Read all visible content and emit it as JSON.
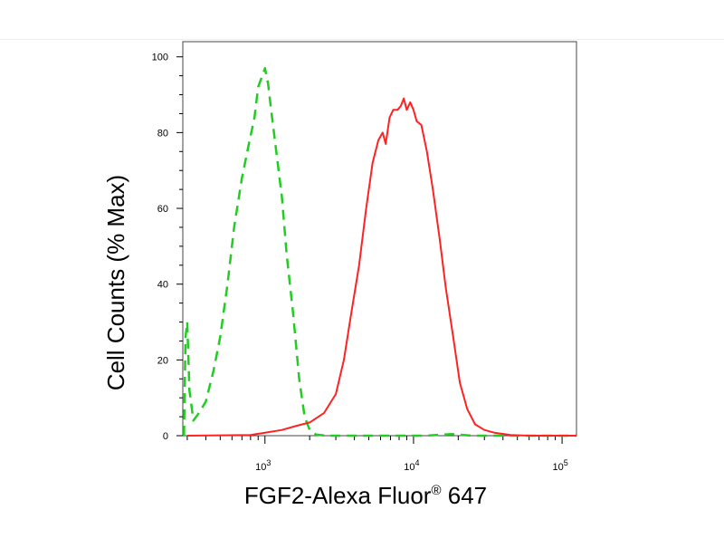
{
  "chart_data": {
    "type": "line",
    "title": "",
    "xlabel": {
      "prefix": "FGF2-Alexa Fluor",
      "symbol": "®",
      "suffix": " 647"
    },
    "ylabel": "Cell Counts (% Max)",
    "x_scale": "log",
    "xlim": [
      280,
      125000
    ],
    "ylim": [
      0,
      104
    ],
    "y_ticks": [
      0,
      20,
      40,
      60,
      80,
      100
    ],
    "x_ticks": [
      {
        "value": 1000,
        "base": "10",
        "exp": "3"
      },
      {
        "value": 10000,
        "base": "10",
        "exp": "4"
      },
      {
        "value": 100000,
        "base": "10",
        "exp": "5"
      }
    ],
    "grid": false,
    "legend": "none",
    "series": [
      {
        "color": "#22cc22",
        "style": "dashed",
        "points": [
          [
            285,
            0
          ],
          [
            292,
            26
          ],
          [
            300,
            30
          ],
          [
            310,
            12
          ],
          [
            330,
            4
          ],
          [
            360,
            6
          ],
          [
            400,
            9
          ],
          [
            450,
            17
          ],
          [
            500,
            26
          ],
          [
            560,
            40
          ],
          [
            620,
            55
          ],
          [
            700,
            68
          ],
          [
            780,
            77
          ],
          [
            850,
            84
          ],
          [
            900,
            92
          ],
          [
            960,
            95
          ],
          [
            1000,
            97
          ],
          [
            1050,
            93
          ],
          [
            1100,
            86
          ],
          [
            1200,
            74
          ],
          [
            1300,
            63
          ],
          [
            1400,
            48
          ],
          [
            1550,
            32
          ],
          [
            1700,
            15
          ],
          [
            1850,
            5
          ],
          [
            2000,
            1.5
          ],
          [
            2200,
            0.3
          ],
          [
            2600,
            0
          ],
          [
            12000,
            0
          ],
          [
            18000,
            0.4
          ],
          [
            25000,
            0
          ],
          [
            125000,
            0
          ]
        ]
      },
      {
        "color": "#ff2222",
        "style": "solid",
        "points": [
          [
            300,
            0
          ],
          [
            800,
            0.2
          ],
          [
            1000,
            0.8
          ],
          [
            1300,
            1.5
          ],
          [
            1600,
            2.5
          ],
          [
            2000,
            3.5
          ],
          [
            2500,
            6
          ],
          [
            3000,
            11
          ],
          [
            3400,
            20
          ],
          [
            3800,
            32
          ],
          [
            4300,
            45
          ],
          [
            4800,
            60
          ],
          [
            5300,
            72
          ],
          [
            5800,
            78
          ],
          [
            6200,
            80
          ],
          [
            6500,
            77
          ],
          [
            6900,
            84
          ],
          [
            7300,
            86
          ],
          [
            7800,
            86
          ],
          [
            8200,
            87
          ],
          [
            8600,
            89
          ],
          [
            9000,
            86
          ],
          [
            9500,
            88
          ],
          [
            10000,
            86
          ],
          [
            10500,
            83
          ],
          [
            11300,
            82
          ],
          [
            12300,
            75
          ],
          [
            13500,
            65
          ],
          [
            15000,
            52
          ],
          [
            16500,
            39
          ],
          [
            18500,
            26
          ],
          [
            20500,
            14
          ],
          [
            23000,
            7
          ],
          [
            26000,
            3
          ],
          [
            30000,
            1.5
          ],
          [
            35000,
            0.8
          ],
          [
            45000,
            0.2
          ],
          [
            60000,
            0
          ],
          [
            125000,
            0
          ]
        ]
      }
    ]
  }
}
